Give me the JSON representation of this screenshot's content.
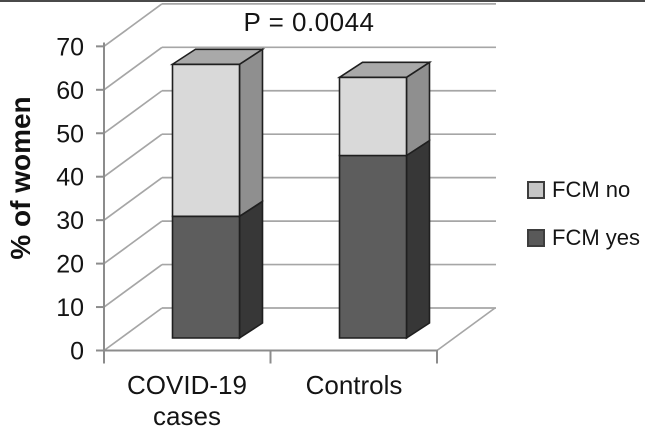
{
  "chart_data": {
    "type": "bar",
    "subtype": "3d-stacked-column",
    "categories": [
      "COVID-19 cases",
      "Controls"
    ],
    "category_lines": [
      [
        "COVID-19",
        "cases"
      ],
      [
        "Controls"
      ]
    ],
    "series": [
      {
        "name": "FCM yes",
        "values": [
          28,
          42
        ]
      },
      {
        "name": "FCM no",
        "values": [
          35,
          18
        ]
      }
    ],
    "totals": [
      63,
      60
    ],
    "annotation": "P = 0.0044",
    "ylabel": "% of women",
    "xlabel": "",
    "yticks": [
      0,
      10,
      20,
      30,
      40,
      50,
      60,
      70
    ],
    "ylim": [
      0,
      70
    ],
    "grid": true,
    "legend": [
      "FCM no",
      "FCM yes"
    ],
    "legend_position": "right"
  },
  "colors": {
    "fcm_no_front": "#d9d9d9",
    "fcm_no_side": "#8f8f8f",
    "fcm_no_top": "#a9a9a9",
    "fcm_yes_front": "#5d5d5d",
    "fcm_yes_side": "#373737",
    "outline": "#1f1f1f",
    "gridline": "#a6a6a6",
    "axis": "#8c8c8c",
    "legend_no_swatch": "#c6c6c6",
    "legend_yes_swatch": "#595959",
    "text": "#141414"
  }
}
